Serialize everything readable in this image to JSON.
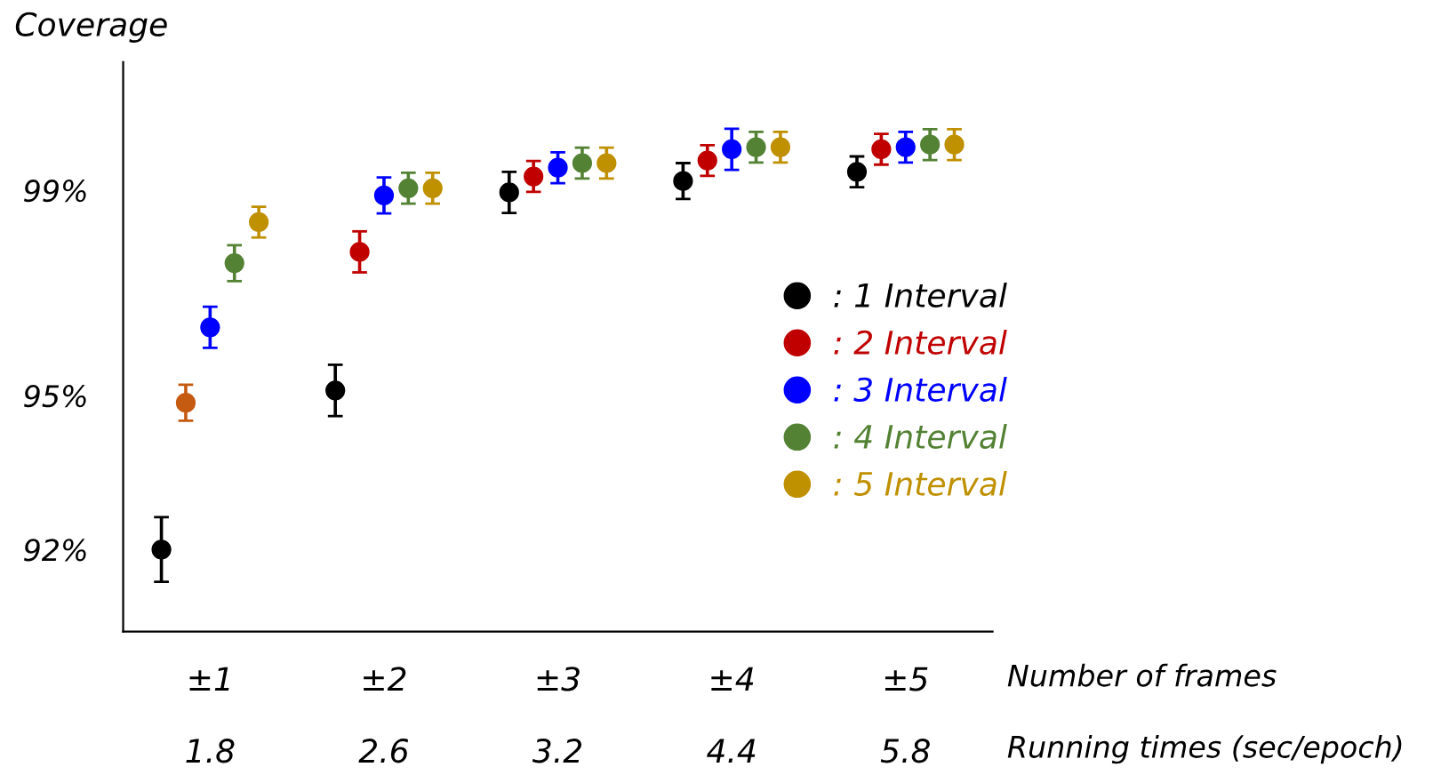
{
  "chart_data": {
    "type": "scatter",
    "ylabel": "Coverage",
    "xlabel": "Number of frames\nRunning times (sec/epoch)",
    "categories": [
      "±1\n\n1.8",
      "±2\n\n2.6",
      "±3\n\n3.2",
      "±4\n\n4.4",
      "±5\n\n5.8"
    ],
    "ylim": [
      90.4,
      101.5
    ],
    "yticks": [
      {
        "value": 92,
        "label": "92%"
      },
      {
        "value": 95,
        "label": "95%"
      },
      {
        "value": 99,
        "label": "99%"
      }
    ],
    "marker": "circle",
    "grid": false,
    "legend": "right",
    "series": [
      {
        "name": ": 1 Interval",
        "color": "#000000",
        "values": [
          92.0,
          95.1,
          98.96,
          99.18,
          99.36
        ],
        "errors": [
          0.63,
          0.5,
          0.4,
          0.35,
          0.3
        ]
      },
      {
        "name": ": 2 Interval",
        "color": "#c00000",
        "colors": [
          "#c55a11",
          "#c00000",
          "#c00000",
          "#c00000",
          "#c00000"
        ],
        "values": [
          94.86,
          97.8,
          99.27,
          99.58,
          99.8
        ],
        "errors": [
          0.35,
          0.4,
          0.3,
          0.3,
          0.3
        ]
      },
      {
        "name": ": 3 Interval",
        "color": "#0000ff",
        "values": [
          96.33,
          98.9,
          99.44,
          99.8,
          99.84
        ],
        "errors": [
          0.4,
          0.35,
          0.3,
          0.4,
          0.3
        ]
      },
      {
        "name": ": 4 Interval",
        "color": "#548235",
        "values": [
          97.58,
          99.04,
          99.53,
          99.84,
          99.89
        ],
        "errors": [
          0.35,
          0.3,
          0.3,
          0.3,
          0.3
        ]
      },
      {
        "name": ": 5 Interval",
        "color": "#bf9000",
        "values": [
          98.38,
          99.04,
          99.53,
          99.84,
          99.89
        ],
        "errors": [
          0.3,
          0.3,
          0.3,
          0.3,
          0.3
        ]
      }
    ]
  }
}
